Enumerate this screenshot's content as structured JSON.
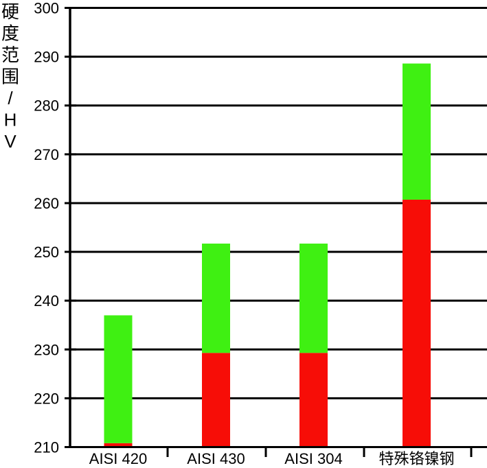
{
  "chart_data": {
    "type": "bar",
    "subtype": "stacked-range-columns",
    "title": "",
    "xlabel": "",
    "ylabel": "硬度范围/HV",
    "ylim": [
      210,
      300
    ],
    "ytick_step": 10,
    "ytick_labels": [
      "210",
      "220",
      "230",
      "240",
      "250",
      "260",
      "270",
      "280",
      "290",
      "300"
    ],
    "categories": [
      "AISI 420",
      "AISI 430",
      "AISI 304",
      "特殊铬镍钢"
    ],
    "series": [
      {
        "name": "lower-range-red",
        "color": "#f70d07",
        "from": [
          210,
          210,
          210,
          210
        ],
        "to": [
          210.8,
          229.3,
          229.3,
          260.7
        ]
      },
      {
        "name": "upper-range-green",
        "color": "#3ff012",
        "from": [
          210.8,
          229.3,
          229.3,
          260.7
        ],
        "to": [
          237,
          251.7,
          251.7,
          288.6
        ]
      }
    ],
    "grid": "horizontal",
    "legend": "none",
    "background": "#ffffff",
    "axis_color": "#000000"
  }
}
